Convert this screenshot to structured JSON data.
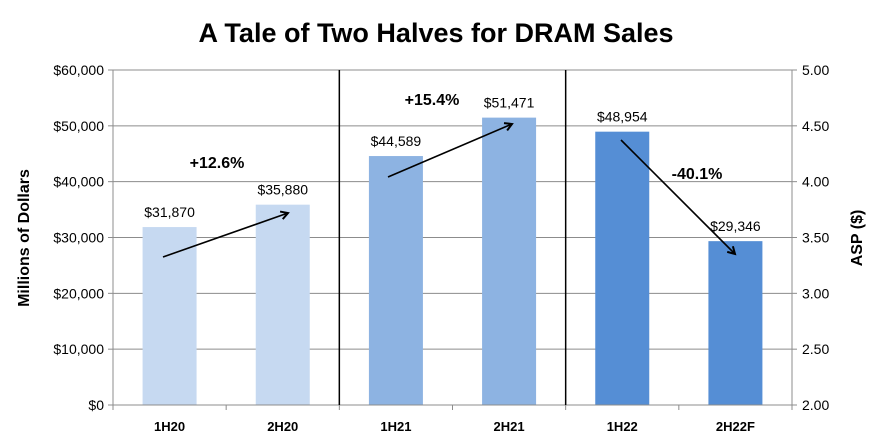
{
  "chart_data": {
    "type": "bar",
    "title": "A Tale of Two Halves for DRAM Sales",
    "ylabel": "Millions of Dollars",
    "y2label": "ASP ($)",
    "categories": [
      "1H20",
      "2H20",
      "1H21",
      "2H21",
      "1H22",
      "2H22F"
    ],
    "values": [
      31870,
      35880,
      44589,
      51471,
      48954,
      29346
    ],
    "data_labels": [
      "$31,870",
      "$35,880",
      "$44,589",
      "$51,471",
      "$48,954",
      "$29,346"
    ],
    "bar_colors": [
      "#c6d9f1",
      "#c6d9f1",
      "#8db3e2",
      "#8db3e2",
      "#558ed5",
      "#558ed5"
    ],
    "ylim": [
      0,
      60000
    ],
    "yticks": [
      "$0",
      "$10,000",
      "$20,000",
      "$30,000",
      "$40,000",
      "$50,000",
      "$60,000"
    ],
    "y2lim": [
      2.0,
      5.0
    ],
    "y2ticks": [
      "2.00",
      "2.50",
      "3.00",
      "3.50",
      "4.00",
      "4.50",
      "5.00"
    ],
    "grid": true,
    "annotations": [
      {
        "text": "+12.6%",
        "from": "1H20",
        "to": "2H20"
      },
      {
        "text": "+15.4%",
        "from": "1H21",
        "to": "2H21"
      },
      {
        "text": "-40.1%",
        "from": "1H22",
        "to": "2H22F"
      }
    ]
  }
}
